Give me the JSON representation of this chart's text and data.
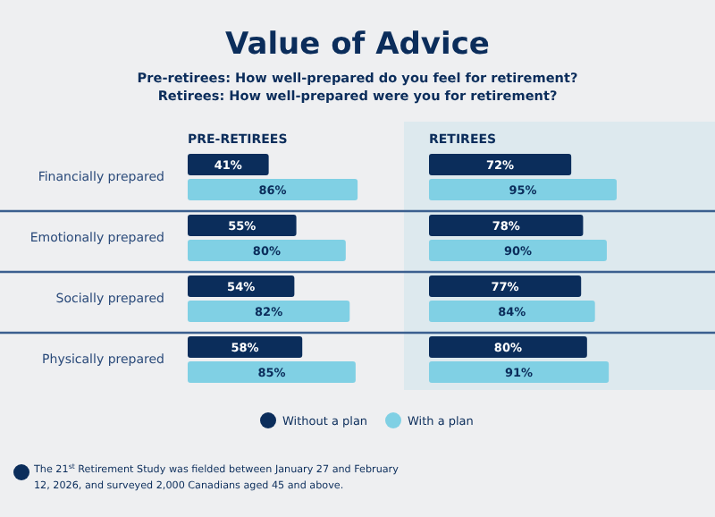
{
  "chart_data": [
    {
      "type": "other",
      "title": "Value of Advice",
      "subtitle": "Pre-retirees: How well-prepared do you feel for retirement?\nRetirees: How well-prepared were you for retirement?",
      "annotations": [
        "The 21$^{st}$ Retirement Study was fielded between January 27 and February 12, 2026, and surveyed 2,000 Canadians aged 45 and above."
      ]
    },
    {
      "type": "bar",
      "orientation": "horizontal",
      "title": "PRE-RETIREES",
      "categories": [
        "Financially prepared",
        "Emotionally prepared",
        "Socially prepared",
        "Physically prepared"
      ],
      "data_labels": true,
      "series": [
        {
          "color": "#0b2d5b",
          "values": [
            41,
            55,
            54,
            58
          ],
          "value_labels": [
            "41%",
            "55%",
            "54%",
            "58%"
          ]
        },
        {
          "color": "#80d0e4",
          "values": [
            86,
            80,
            82,
            85
          ],
          "value_labels": [
            "86%",
            "80%",
            "82%",
            "85%"
          ]
        }
      ]
    },
    {
      "type": "bar",
      "orientation": "horizontal",
      "title": "RETIREES",
      "categories": [
        null,
        null,
        null,
        null
      ],
      "data_labels": true,
      "legend": "bottom",
      "series": [
        {
          "name": "Without a plan",
          "color": "#0b2d5b",
          "values": [
            72,
            78,
            77,
            80
          ],
          "value_labels": [
            "72%",
            "78%",
            "77%",
            "80%"
          ]
        },
        {
          "name": "With a plan",
          "color": "#80d0e4",
          "values": [
            95,
            90,
            84,
            91
          ],
          "value_labels": [
            "95%",
            "90%",
            "84%",
            "91%"
          ]
        }
      ]
    }
  ]
}
